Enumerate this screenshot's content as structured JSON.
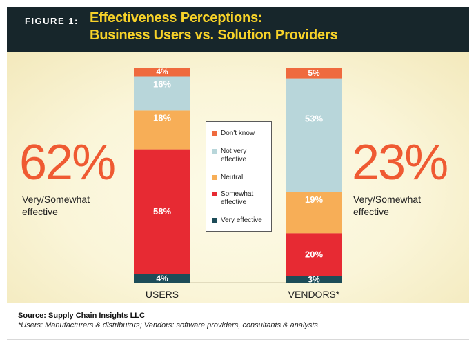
{
  "header": {
    "figure_label": "FIGURE 1",
    "figure_colon": ":",
    "title_line_1": "Effectiveness Perceptions:",
    "title_line_2": "Business Users vs. Solution Providers"
  },
  "left_summary": {
    "value": "62%",
    "caption": "Very/Somewhat effective"
  },
  "right_summary": {
    "value": "23%",
    "caption": "Very/Somewhat effective"
  },
  "footer": {
    "source": "Source: Supply Chain Insights LLC",
    "footnote": "*Users: Manufacturers & distributors; Vendors: software providers, consultants & analysts"
  },
  "colors": {
    "dont_know": "#ef6a3e",
    "not_very": "#b8d6da",
    "neutral": "#f7ae57",
    "somewhat": "#e72a33",
    "very": "#1d4c58"
  },
  "chart_data": {
    "type": "bar",
    "stacked": true,
    "categories": [
      "USERS",
      "VENDORS*"
    ],
    "series": [
      {
        "name": "Very effective",
        "values": [
          4,
          3
        ],
        "labels": [
          "4%",
          "3%"
        ]
      },
      {
        "name": "Somewhat effective",
        "values": [
          58,
          20
        ],
        "labels": [
          "58%",
          "20%"
        ]
      },
      {
        "name": "Neutral",
        "values": [
          18,
          19
        ],
        "labels": [
          "18%",
          "19%"
        ]
      },
      {
        "name": "Not very effective",
        "values": [
          16,
          53
        ],
        "labels": [
          "16%",
          "53%"
        ]
      },
      {
        "name": "Don't know",
        "values": [
          4,
          5
        ],
        "labels": [
          "4%",
          "5%"
        ]
      }
    ],
    "legend": [
      "Don't know",
      "Not very effective",
      "Neutral",
      "Somewhat effective",
      "Very effective"
    ],
    "ylim": [
      0,
      100
    ]
  }
}
